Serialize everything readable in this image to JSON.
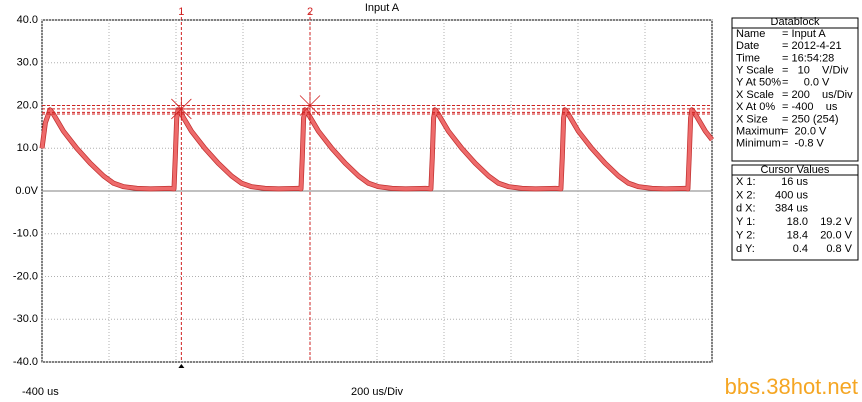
{
  "chart_data": {
    "type": "line",
    "title": "Input A",
    "x": [
      -400,
      -390,
      -376,
      -366,
      -336,
      -296,
      -256,
      -216,
      -186,
      -156,
      -116,
      -76,
      -20,
      -6,
      -2,
      2,
      6,
      16,
      46,
      86,
      126,
      166,
      196,
      226,
      266,
      306,
      366,
      373,
      377,
      381,
      385,
      395,
      425,
      465,
      505,
      545,
      575,
      605,
      645,
      685,
      745,
      761,
      765,
      769,
      773,
      783,
      813,
      853,
      893,
      933,
      963,
      993,
      1033,
      1073,
      1133,
      1149,
      1153,
      1157,
      1161,
      1171,
      1201,
      1241,
      1281,
      1321,
      1351,
      1381,
      1421,
      1461,
      1520,
      1528,
      1532,
      1536,
      1540,
      1550,
      1580,
      1600
    ],
    "series": [
      {
        "name": "Input A",
        "color": "#ee6b6b",
        "values": [
          10,
          16,
          19,
          18,
          14,
          10,
          6.5,
          3.5,
          1.8,
          1,
          0.6,
          0.5,
          0.6,
          0.5,
          8,
          17,
          19,
          18,
          14,
          10,
          6.5,
          3.5,
          1.8,
          1,
          0.6,
          0.5,
          0.6,
          0.5,
          8,
          17,
          19,
          18,
          14,
          10,
          6.5,
          3.5,
          1.8,
          1,
          0.6,
          0.5,
          0.6,
          0.5,
          8,
          17,
          19,
          18,
          14,
          10,
          6.5,
          3.5,
          1.8,
          1,
          0.6,
          0.5,
          0.6,
          0.5,
          8,
          17,
          19,
          18,
          14,
          10,
          6.5,
          3.5,
          1.8,
          1,
          0.6,
          0.5,
          0.6,
          0.5,
          8,
          17,
          19,
          18,
          14,
          12
        ]
      }
    ],
    "xlim": [
      -400,
      1600
    ],
    "xticks": [
      -400,
      -200,
      0,
      200,
      400,
      600,
      800,
      1000,
      1200,
      1400,
      1600
    ],
    "ylim": [
      -40,
      40
    ],
    "yticks": [
      {
        "value": 40,
        "label": "40.0"
      },
      {
        "value": 30,
        "label": "30.0"
      },
      {
        "value": 20,
        "label": "20.0"
      },
      {
        "value": 10,
        "label": "10.0"
      },
      {
        "value": 0,
        "label": "0.0V"
      },
      {
        "value": -10,
        "label": "-10.0"
      },
      {
        "value": -20,
        "label": "-20.0"
      },
      {
        "value": -30,
        "label": "-30.0"
      },
      {
        "value": -40,
        "label": "-40.0"
      }
    ],
    "x_start_label": "-400 us",
    "x_scale_label": "200 us/Div",
    "grid": true,
    "vcursors": [
      {
        "label": "1",
        "x": 16
      },
      {
        "label": "2",
        "x": 400
      }
    ],
    "hcursors": [
      18.0,
      19.2,
      18.4,
      20.0
    ]
  },
  "datablock": {
    "title": "Datablock",
    "rows": [
      [
        "Name",
        "= Input A"
      ],
      [
        "Date",
        "= 2012-4-21"
      ],
      [
        "Time",
        "= 16:54:28"
      ],
      [
        "Y Scale",
        "=   10    V/Div"
      ],
      [
        "Y At 50%",
        "=     0.0 V"
      ],
      [
        "X Scale",
        "= 200    us/Div"
      ],
      [
        "X At 0%",
        "= -400    us"
      ],
      [
        "X Size",
        "= 250 (254)"
      ],
      [
        "Maximum",
        "=  20.0 V"
      ],
      [
        "Minimum",
        "=  -0.8 V"
      ]
    ]
  },
  "cursor_values": {
    "title": "Cursor Values",
    "rows": [
      [
        "X 1:",
        "16 us",
        ""
      ],
      [
        "X 2:",
        "400 us",
        ""
      ],
      [
        "d X:",
        "384 us",
        ""
      ],
      [
        "Y 1:",
        "18.0",
        "19.2 V"
      ],
      [
        "Y 2:",
        "18.4",
        "20.0 V"
      ],
      [
        "d Y:",
        "0.4",
        "0.8 V"
      ]
    ]
  },
  "watermark": "bbs.38hot.net"
}
